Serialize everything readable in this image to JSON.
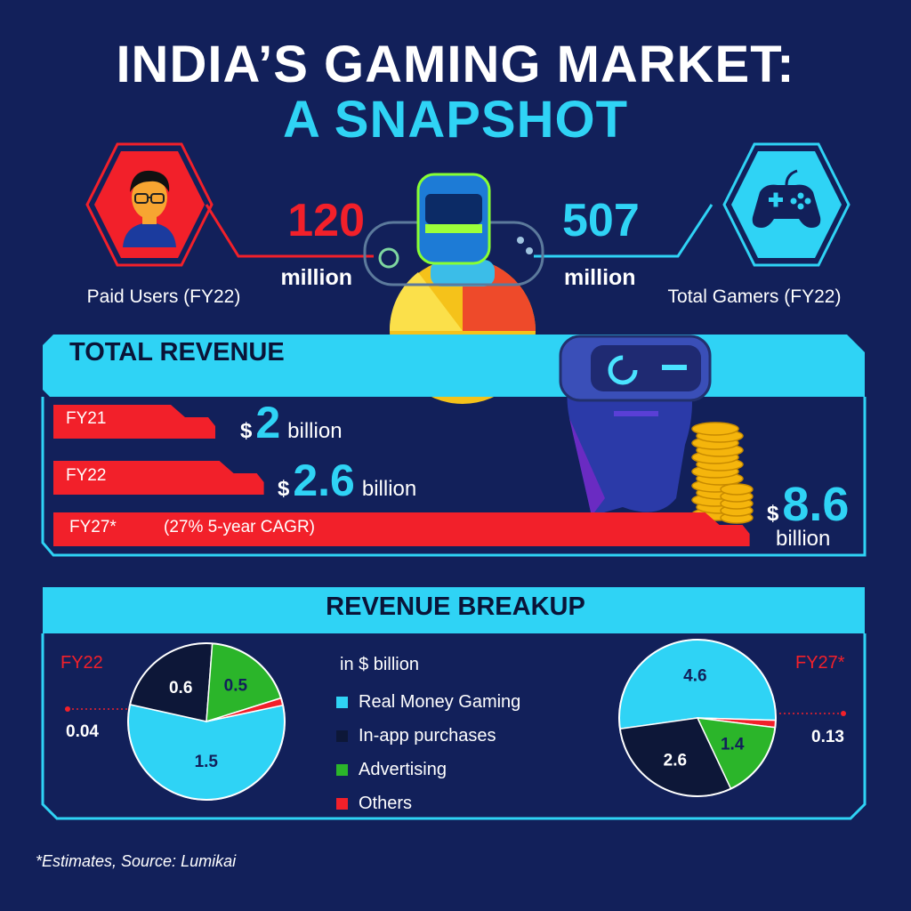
{
  "header": {
    "title_line1": "INDIA’S GAMING MARKET:",
    "title_line2": "A SNAPSHOT"
  },
  "stats": {
    "paid_users": {
      "value": "120",
      "unit": "million",
      "caption": "Paid Users (FY22)",
      "icon": "person-icon"
    },
    "total_gamers": {
      "value": "507",
      "unit": "million",
      "caption": "Total Gamers (FY22)",
      "icon": "gamepad-icon"
    }
  },
  "total_revenue": {
    "title": "TOTAL REVENUE",
    "bars": [
      {
        "label": "FY21",
        "currency": "$",
        "value": "2",
        "unit": "billion",
        "note": ""
      },
      {
        "label": "FY22",
        "currency": "$",
        "value": "2.6",
        "unit": "billion",
        "note": ""
      },
      {
        "label": "FY27*",
        "currency": "$",
        "value": "8.6",
        "unit": "billion",
        "note": "(27% 5-year CAGR)"
      }
    ]
  },
  "revenue_breakup": {
    "title": "REVENUE BREAKUP",
    "legend_unit": "in $ billion",
    "legend": [
      "Real Money Gaming",
      "In-app purchases",
      "Advertising",
      "Others"
    ],
    "fy22_label": "FY22",
    "fy27_label": "FY27*",
    "fy22_others_label": "0.04",
    "fy27_others_label": "0.13"
  },
  "footer": {
    "note": "*Estimates, Source: Lumikai"
  },
  "colors": {
    "background": "#12205a",
    "accent_cyan": "#2fd3f5",
    "accent_red": "#f2202a",
    "advertising_green": "#2bb52a",
    "inapp_navy": "#0d1738"
  },
  "chart_data": [
    {
      "type": "bar",
      "title": "TOTAL REVENUE",
      "categories": [
        "FY21",
        "FY22",
        "FY27*"
      ],
      "values": [
        2,
        2.6,
        8.6
      ],
      "ylabel": "$ billion"
    },
    {
      "type": "pie",
      "title": "FY22",
      "categories": [
        "Real Money Gaming",
        "In-app purchases",
        "Advertising",
        "Others"
      ],
      "values": [
        1.5,
        0.6,
        0.5,
        0.04
      ],
      "labels": [
        "1.5",
        "0.6",
        "0.5",
        "0.04"
      ],
      "colors": [
        "#2fd3f5",
        "#0d1738",
        "#2bb52a",
        "#f2202a"
      ]
    },
    {
      "type": "pie",
      "title": "FY27*",
      "categories": [
        "Real Money Gaming",
        "In-app purchases",
        "Advertising",
        "Others"
      ],
      "values": [
        4.6,
        2.6,
        1.4,
        0.13
      ],
      "labels": [
        "4.6",
        "2.6",
        "1.4",
        "0.13"
      ],
      "colors": [
        "#2fd3f5",
        "#0d1738",
        "#2bb52a",
        "#f2202a"
      ]
    }
  ]
}
